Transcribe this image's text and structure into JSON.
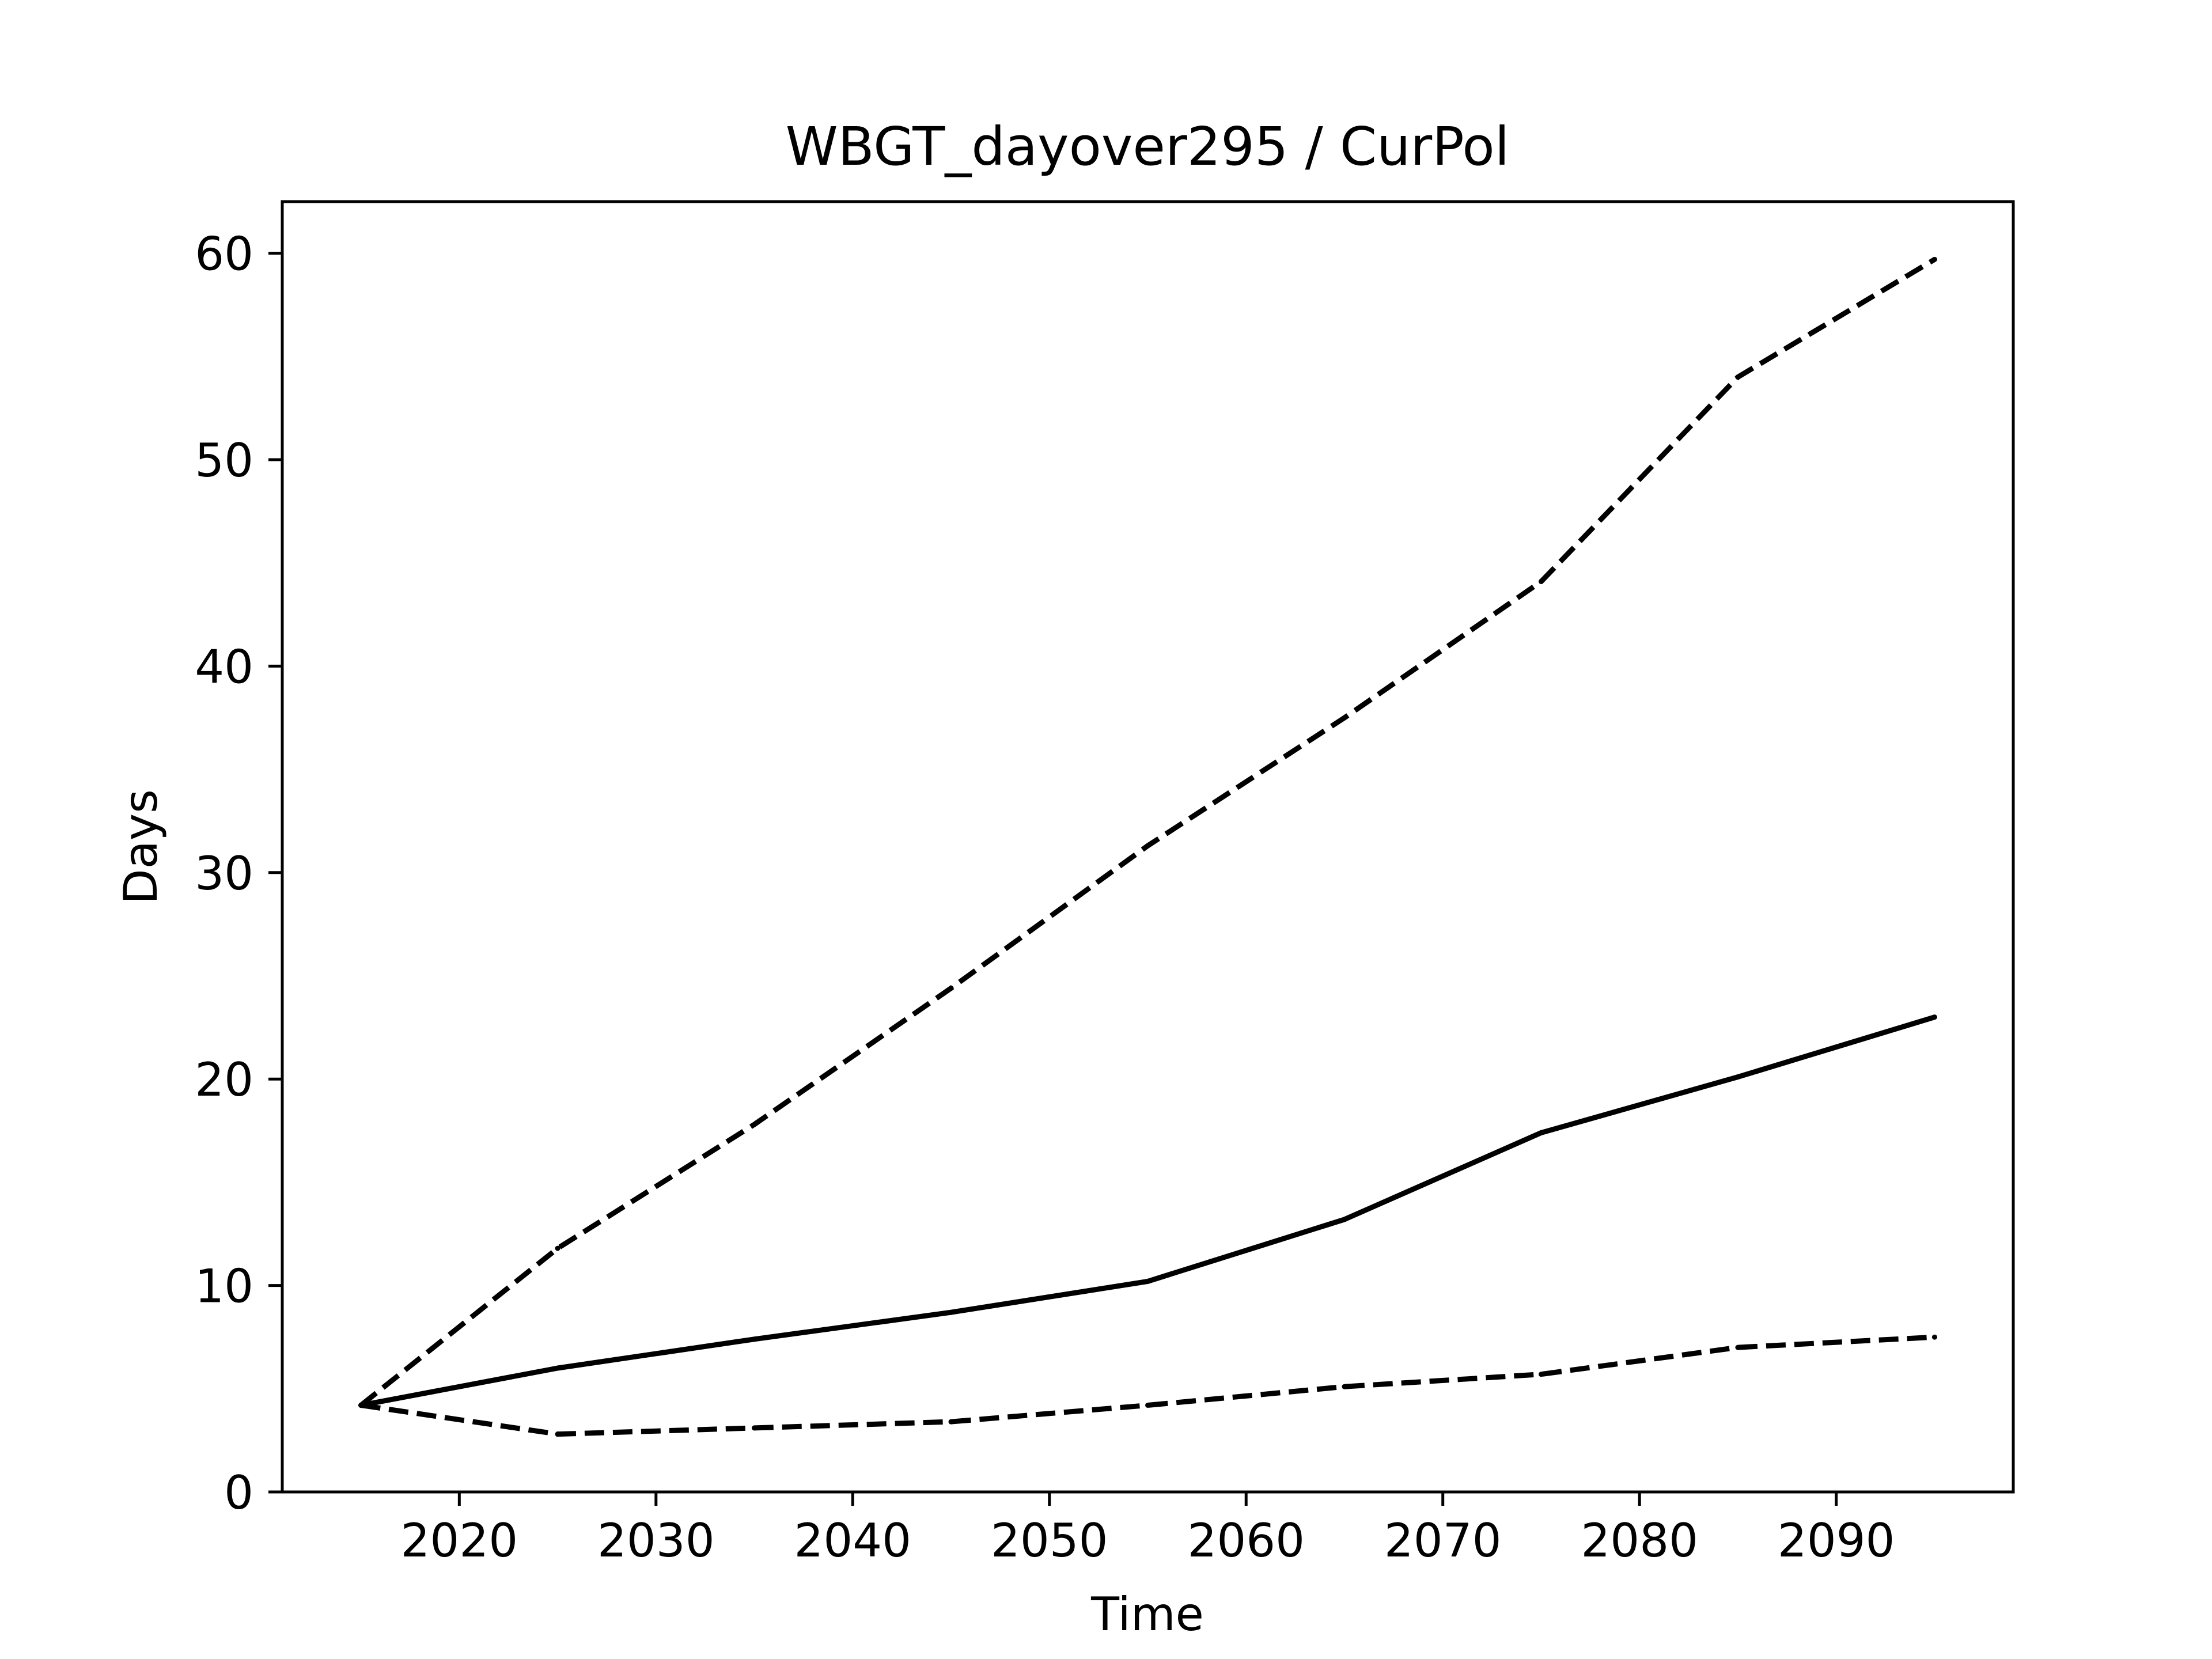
{
  "chart_data": {
    "type": "line",
    "title": "WBGT_dayover295 / CurPol",
    "xlabel": "Time",
    "ylabel": "Days",
    "xlim": [
      2011,
      2099
    ],
    "ylim": [
      0,
      62.5
    ],
    "xticks": [
      2020,
      2030,
      2040,
      2050,
      2060,
      2070,
      2080,
      2090
    ],
    "yticks": [
      0,
      10,
      20,
      30,
      40,
      50,
      60
    ],
    "grid": false,
    "legend": "none",
    "series": [
      {
        "style": "dashed",
        "color": "#000000",
        "x": [
          2015,
          2025,
          2035,
          2045,
          2055,
          2065,
          2075,
          2085,
          2095
        ],
        "y": [
          4.2,
          11.8,
          17.8,
          24.4,
          31.3,
          37.5,
          44.1,
          54.0,
          59.7
        ]
      },
      {
        "style": "solid",
        "color": "#000000",
        "x": [
          2015,
          2025,
          2035,
          2045,
          2055,
          2065,
          2075,
          2085,
          2095
        ],
        "y": [
          4.2,
          6.0,
          7.4,
          8.7,
          10.2,
          13.2,
          17.4,
          20.1,
          23.0
        ]
      },
      {
        "style": "dashed",
        "color": "#000000",
        "x": [
          2015,
          2025,
          2035,
          2045,
          2055,
          2065,
          2075,
          2085,
          2095
        ],
        "y": [
          4.2,
          2.8,
          3.1,
          3.4,
          4.2,
          5.1,
          5.7,
          7.0,
          7.5
        ]
      }
    ]
  }
}
